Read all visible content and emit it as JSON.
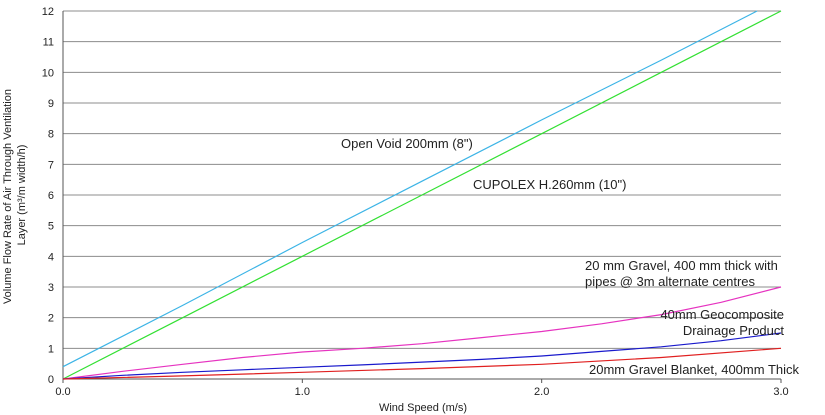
{
  "chart_data": {
    "type": "line",
    "xlabel": "Wind Speed (m/s)",
    "ylabel_lines": [
      "Volume Flow Rate of Air Through Ventilation",
      "Layer (m³/m width/h)"
    ],
    "xlim": [
      0,
      3
    ],
    "ylim": [
      0,
      12
    ],
    "x_ticks": [
      0,
      1,
      2,
      3
    ],
    "x_tick_labels": [
      "0.0",
      "1.0",
      "2.0",
      "3.0"
    ],
    "y_ticks": [
      0,
      1,
      2,
      3,
      4,
      5,
      6,
      7,
      8,
      9,
      10,
      11,
      12
    ],
    "y_tick_labels": [
      "0",
      "1",
      "2",
      "3",
      "4",
      "5",
      "6",
      "7",
      "8",
      "9",
      "10",
      "11",
      "12"
    ],
    "grid": "horizontal",
    "legend": "none",
    "series": [
      {
        "label_lines": [
          "Open Void 200mm (8\")"
        ],
        "color": "#3cb4e6",
        "x": [
          0,
          0.5,
          1.0,
          1.5,
          2.0,
          2.5,
          2.9
        ],
        "y": [
          0.4,
          2.4,
          4.45,
          6.45,
          8.45,
          10.4,
          12.0
        ]
      },
      {
        "label_lines": [
          "CUPOLEX H.260mm (10\")"
        ],
        "color": "#33e033",
        "x": [
          0,
          0.5,
          1.0,
          1.5,
          2.0,
          2.5,
          3.0
        ],
        "y": [
          0,
          2.0,
          4.0,
          6.0,
          8.0,
          10.0,
          12.0
        ]
      },
      {
        "label_lines": [
          "20 mm Gravel, 400 mm thick with",
          "pipes @ 3m alternate centres"
        ],
        "color": "#e633c0",
        "x": [
          0,
          0.25,
          0.5,
          0.75,
          1.0,
          1.25,
          1.5,
          1.75,
          2.0,
          2.25,
          2.5,
          2.75,
          3.0
        ],
        "y": [
          0,
          0.25,
          0.48,
          0.7,
          0.88,
          1.0,
          1.15,
          1.35,
          1.55,
          1.8,
          2.1,
          2.5,
          3.0
        ]
      },
      {
        "label_lines": [
          "40mm Geocomposite",
          "Drainage Product"
        ],
        "color": "#1a1acc",
        "x": [
          0,
          0.25,
          0.5,
          0.75,
          1.0,
          1.25,
          1.5,
          1.75,
          2.0,
          2.25,
          2.5,
          2.75,
          3.0
        ],
        "y": [
          0,
          0.12,
          0.22,
          0.3,
          0.38,
          0.46,
          0.55,
          0.64,
          0.75,
          0.9,
          1.05,
          1.25,
          1.5
        ]
      },
      {
        "label_lines": [
          "20mm Gravel Blanket, 400mm Thick"
        ],
        "color": "#e02020",
        "x": [
          0,
          0.5,
          1.0,
          1.5,
          2.0,
          2.5,
          3.0
        ],
        "y": [
          0,
          0.1,
          0.22,
          0.34,
          0.48,
          0.7,
          1.0
        ]
      }
    ]
  }
}
